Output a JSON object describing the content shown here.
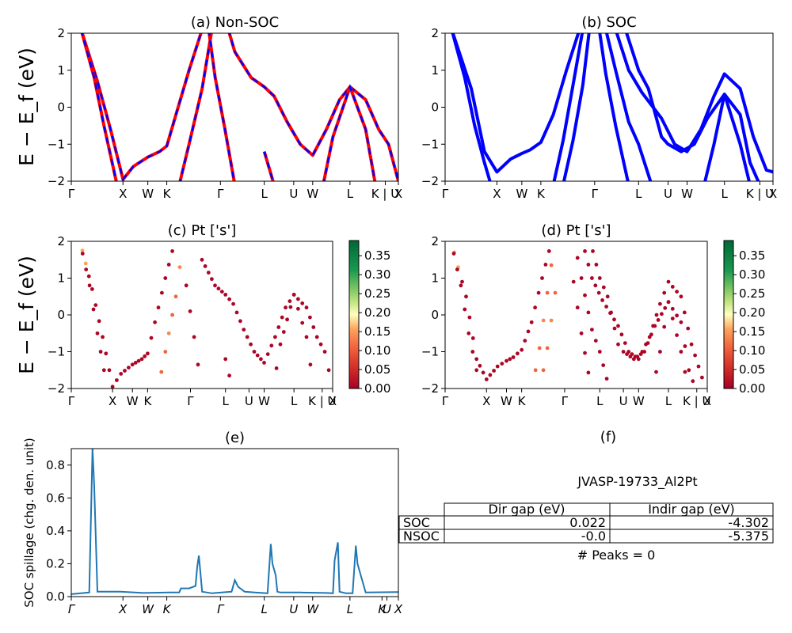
{
  "figure": {
    "ylabel_band": "E − E_f (eV)",
    "cbar_ticks": [
      "0.00",
      "0.05",
      "0.10",
      "0.15",
      "0.20",
      "0.25",
      "0.30",
      "0.35"
    ],
    "cbar_range": [
      0,
      0.39
    ],
    "kpath_labels": [
      "Γ",
      "X",
      "W",
      "K",
      "Γ",
      "L",
      "U",
      "W",
      "L",
      "K | U",
      "X"
    ],
    "kpath_labels_spillage": [
      "Γ",
      "X",
      "W",
      "K",
      "Γ",
      "L",
      "U",
      "W",
      "L",
      "K",
      "U",
      "X"
    ]
  },
  "chart_data": [
    {
      "id": "a",
      "type": "line",
      "title": "(a) Non-SOC",
      "ylim": [
        -2,
        2
      ],
      "yticks": [
        -2,
        -1,
        0,
        1,
        2
      ],
      "series_colors": [
        "#ff0000",
        "#0000ff"
      ],
      "note": "red solid and blue dashed overlap"
    },
    {
      "id": "b",
      "type": "line",
      "title": "(b) SOC",
      "ylim": [
        -2,
        2
      ],
      "yticks": [
        -2,
        -1,
        0,
        1,
        2
      ],
      "series_colors": [
        "#0000ff"
      ]
    },
    {
      "id": "c",
      "type": "scatter",
      "title": "(c)  Pt ['s']",
      "ylim": [
        -2,
        2
      ],
      "yticks": [
        -2,
        -1,
        0,
        1,
        2
      ],
      "colormap": "RdYlGn"
    },
    {
      "id": "d",
      "type": "scatter",
      "title": "(d) Pt ['s']",
      "ylim": [
        -2,
        2
      ],
      "yticks": [
        -2,
        -1,
        0,
        1,
        2
      ],
      "colormap": "RdYlGn"
    },
    {
      "id": "e",
      "type": "line",
      "title": "(e)",
      "ylabel": "SOC spillage (chg. den. unit)",
      "ylim": [
        0,
        0.9
      ],
      "yticks": [
        "0.0",
        "0.2",
        "0.4",
        "0.6",
        "0.8"
      ],
      "x": [
        0,
        0.03,
        0.055,
        0.065,
        0.07,
        0.08,
        0.1,
        0.15,
        0.22,
        0.3,
        0.33,
        0.335,
        0.36,
        0.38,
        0.385,
        0.39,
        0.4,
        0.43,
        0.46,
        0.49,
        0.5,
        0.51,
        0.53,
        0.56,
        0.6,
        0.61,
        0.615,
        0.625,
        0.63,
        0.64,
        0.7,
        0.78,
        0.8,
        0.805,
        0.815,
        0.82,
        0.84,
        0.86,
        0.87,
        0.875,
        0.885,
        0.9,
        1.0
      ],
      "values": [
        0.015,
        0.02,
        0.025,
        0.9,
        0.68,
        0.03,
        0.03,
        0.03,
        0.022,
        0.025,
        0.025,
        0.05,
        0.05,
        0.065,
        0.18,
        0.25,
        0.03,
        0.02,
        0.025,
        0.03,
        0.1,
        0.06,
        0.03,
        0.025,
        0.02,
        0.32,
        0.2,
        0.13,
        0.03,
        0.025,
        0.025,
        0.022,
        0.02,
        0.22,
        0.33,
        0.03,
        0.02,
        0.02,
        0.31,
        0.2,
        0.13,
        0.025,
        0.028
      ],
      "color": "#1f77b4"
    }
  ],
  "panel_f": {
    "title": "(f)",
    "caption": "JVASP-19733_Al2Pt",
    "headers": [
      "Dir gap (eV)",
      "Indir gap (eV)"
    ],
    "rows": [
      {
        "label": "SOC",
        "dir": "0.022",
        "indir": "-4.302"
      },
      {
        "label": "NSOC",
        "dir": "-0.0",
        "indir": "-5.375"
      }
    ],
    "peaks": "# Peaks = 0"
  }
}
